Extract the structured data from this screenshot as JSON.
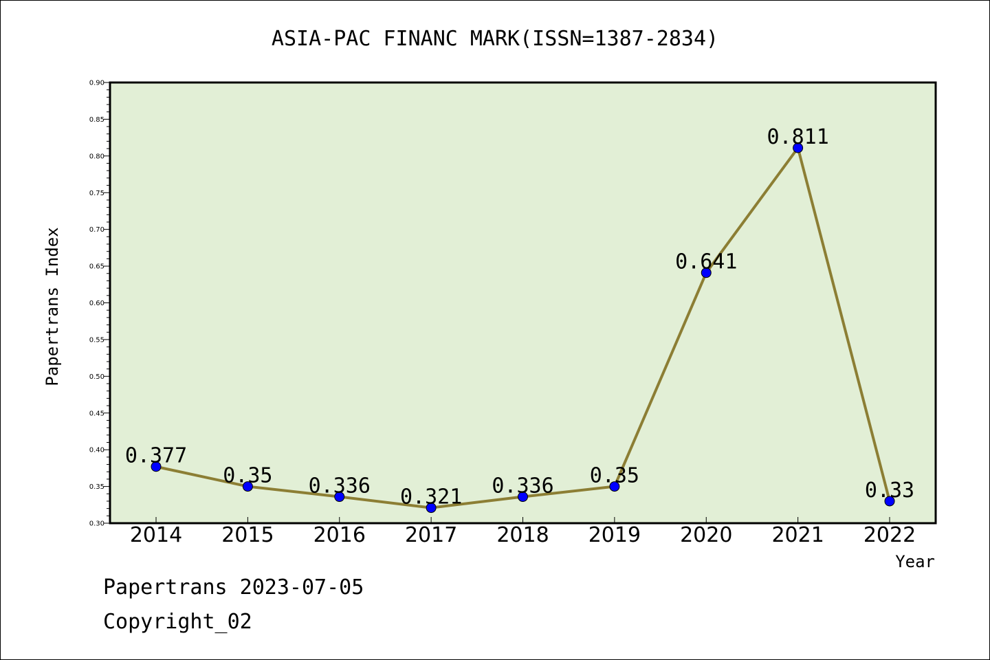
{
  "chart_data": {
    "type": "line",
    "title": "ASIA-PAC FINANC MARK(ISSN=1387-2834)",
    "xlabel": "Year",
    "ylabel": "Papertrans Index",
    "categories": [
      "2014",
      "2015",
      "2016",
      "2017",
      "2018",
      "2019",
      "2020",
      "2021",
      "2022"
    ],
    "values": [
      0.377,
      0.35,
      0.336,
      0.321,
      0.336,
      0.35,
      0.641,
      0.811,
      0.33
    ],
    "data_labels": [
      "0.377",
      "0.35",
      "0.336",
      "0.321",
      "0.336",
      "0.35",
      "0.641",
      "0.811",
      "0.33"
    ],
    "ylim": [
      0.3,
      0.9
    ],
    "yticks": [
      "0.30",
      "0.35",
      "0.40",
      "0.45",
      "0.50",
      "0.55",
      "0.60",
      "0.65",
      "0.70",
      "0.75",
      "0.80",
      "0.85",
      "0.90"
    ],
    "grid": false,
    "colors": {
      "plot_background": "#e2efd6",
      "line": "#8c7e34",
      "marker": "#0000ff"
    }
  },
  "footer": {
    "line1": "Papertrans 2023-07-05",
    "line2": "Copyright_02"
  }
}
